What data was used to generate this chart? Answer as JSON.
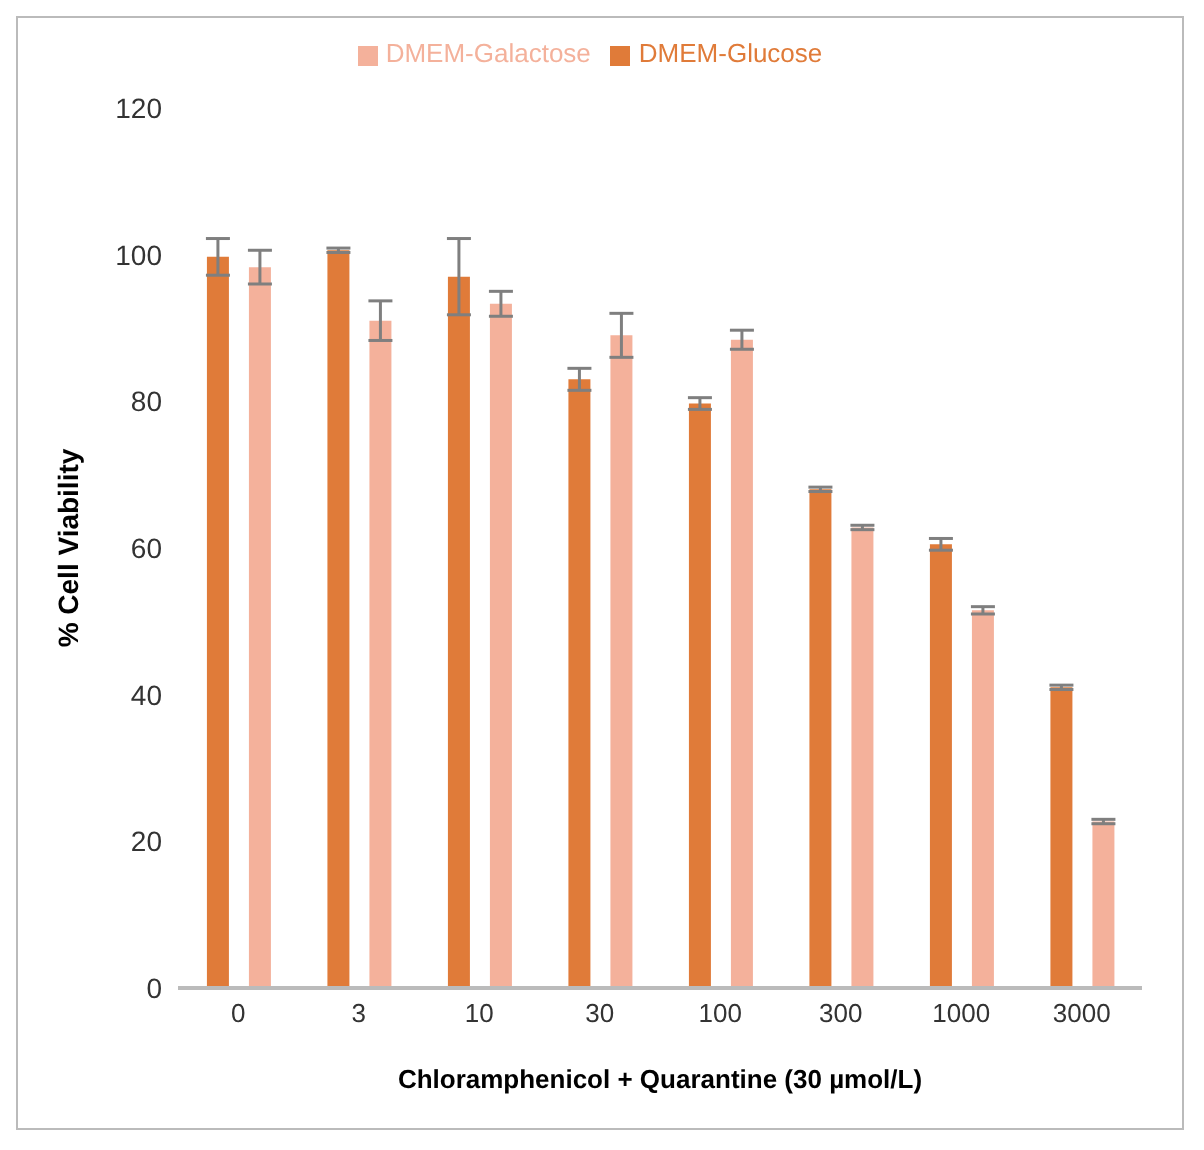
{
  "chart_data": {
    "type": "bar",
    "xlabel": "Chloramphenicol + Quarantine (30 µmol/L)",
    "ylabel": "% Cell Viability",
    "categories": [
      "0",
      "3",
      "10",
      "30",
      "100",
      "300",
      "1000",
      "3000"
    ],
    "series": [
      {
        "name": "DMEM-Glucose",
        "color": "#e07b39",
        "values": [
          99.7,
          100.6,
          97,
          83,
          79.7,
          68,
          60.5,
          41
        ],
        "errors": [
          2.5,
          0.3,
          5.2,
          1.5,
          0.8,
          0.3,
          0.8,
          0.3
        ]
      },
      {
        "name": "DMEM-Galactose",
        "color": "#f4b19b",
        "values": [
          98.3,
          91,
          93.3,
          89,
          88.4,
          62.8,
          51.5,
          22.7
        ],
        "errors": [
          2.3,
          2.7,
          1.7,
          3,
          1.3,
          0.3,
          0.5,
          0.3
        ]
      }
    ],
    "ylim": [
      0,
      120
    ],
    "yticks": [
      0,
      20,
      40,
      60,
      80,
      100,
      120
    ],
    "grid": false,
    "legend": "top"
  }
}
